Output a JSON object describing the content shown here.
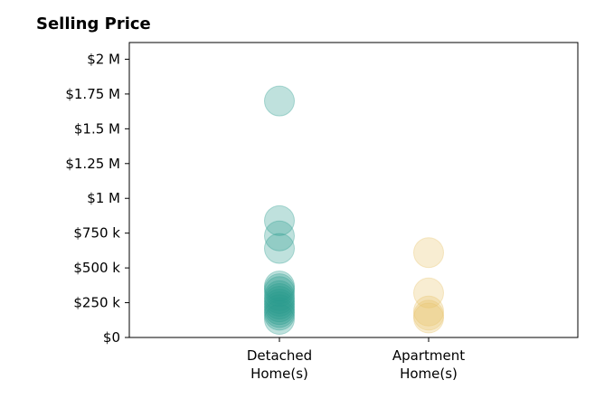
{
  "chart_data": {
    "type": "scatter",
    "title": "Selling Price",
    "categories": [
      "Detached\nHome(s)",
      "Apartment\nHome(s)"
    ],
    "ylim": [
      0,
      2120000
    ],
    "yticks": [
      0,
      250000,
      500000,
      750000,
      1000000,
      1250000,
      1500000,
      1750000,
      2000000
    ],
    "ytick_labels": [
      "$0",
      "$250 k",
      "$500 k",
      "$750 k",
      "$1 M",
      "$1.25 M",
      "$1.5 M",
      "$1.75 M",
      "$2 M"
    ],
    "grid": false,
    "series": [
      {
        "color": "#2a9d8f",
        "category_index": 0,
        "values": [
          1700000,
          840000,
          730000,
          640000,
          370000,
          350000,
          330000,
          300000,
          280000,
          260000,
          240000,
          220000,
          200000,
          180000,
          160000,
          130000
        ]
      },
      {
        "color": "#e9c46a",
        "category_index": 1,
        "values": [
          610000,
          320000,
          190000,
          160000,
          140000
        ]
      }
    ]
  }
}
